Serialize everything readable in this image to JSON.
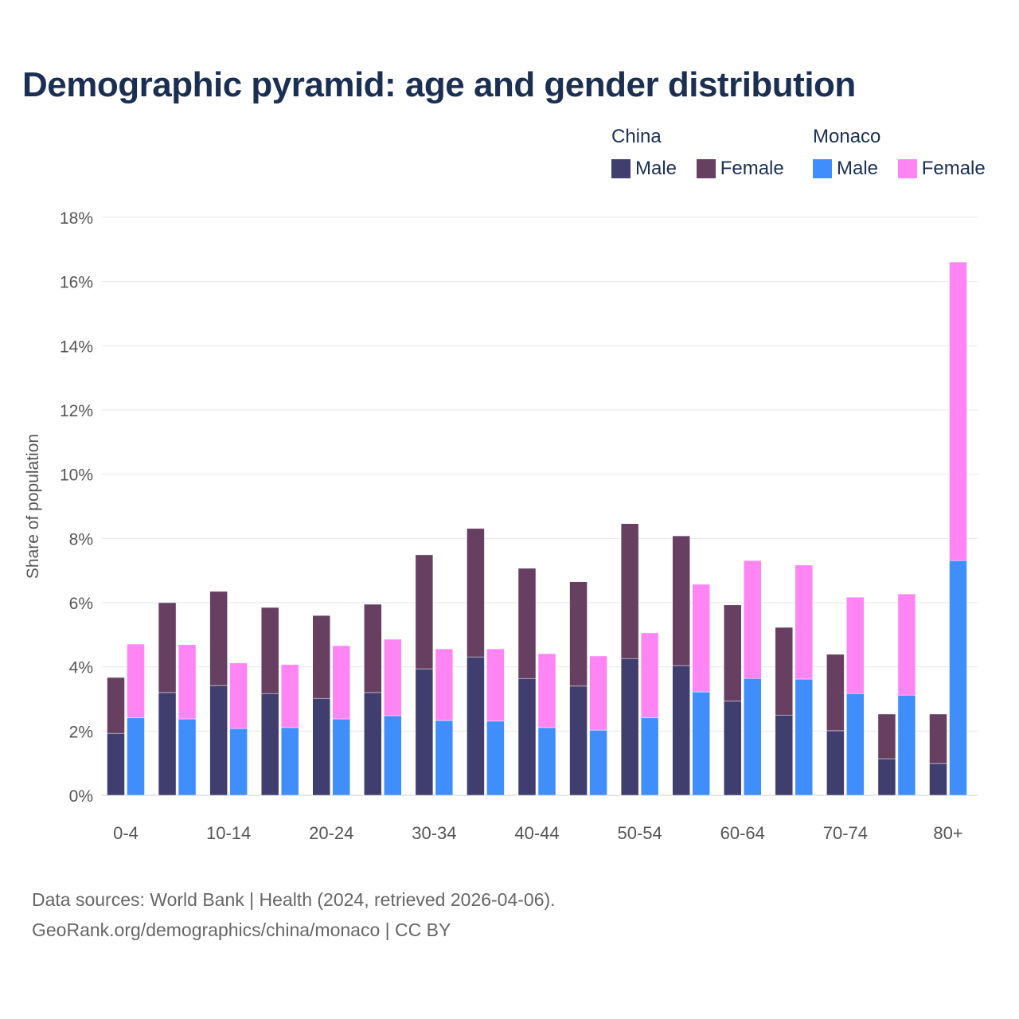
{
  "chart_data": {
    "type": "bar",
    "title": "Demographic pyramid: age and gender distribution",
    "xlabel": "",
    "ylabel": "Share of population",
    "ylim": [
      0,
      18
    ],
    "yticks": [
      "0%",
      "2%",
      "4%",
      "6%",
      "8%",
      "10%",
      "12%",
      "14%",
      "16%",
      "18%"
    ],
    "grid": true,
    "stacked": true,
    "legend_position": "top-right",
    "categories": [
      "0-4",
      "5-9",
      "10-14",
      "15-19",
      "20-24",
      "25-29",
      "30-34",
      "35-39",
      "40-44",
      "45-49",
      "50-54",
      "55-59",
      "60-64",
      "65-69",
      "70-74",
      "75-79",
      "80+"
    ],
    "xtick_labels": [
      "0-4",
      "10-14",
      "20-24",
      "30-34",
      "40-44",
      "50-54",
      "60-64",
      "70-74",
      "80+"
    ],
    "groups": [
      {
        "name": "China",
        "series": [
          {
            "name": "Male",
            "color": "#403d6f",
            "values": [
              1.93,
              3.2,
              3.42,
              3.17,
              3.02,
              3.2,
              3.94,
              4.31,
              3.64,
              3.4,
              4.26,
              4.04,
              2.93,
              2.5,
              2.01,
              1.14,
              0.99
            ]
          },
          {
            "name": "Female",
            "color": "#663f61",
            "values": [
              1.74,
              2.8,
              2.93,
              2.68,
              2.58,
              2.75,
              3.55,
              4.0,
              3.43,
              3.25,
              4.2,
              4.04,
              3.0,
              2.73,
              2.38,
              1.39,
              1.54
            ]
          }
        ]
      },
      {
        "name": "Monaco",
        "series": [
          {
            "name": "Male",
            "color": "#3f8efc",
            "values": [
              2.41,
              2.38,
              2.08,
              2.11,
              2.38,
              2.48,
              2.33,
              2.31,
              2.11,
              2.03,
              2.41,
              3.22,
              3.64,
              3.62,
              3.17,
              3.12,
              7.31
            ]
          },
          {
            "name": "Female",
            "color": "#ff85f5",
            "values": [
              2.3,
              2.31,
              2.04,
              1.96,
              2.28,
              2.38,
              2.23,
              2.25,
              2.3,
              2.31,
              2.65,
              3.35,
              3.67,
              3.55,
              3.0,
              3.15,
              9.3
            ]
          }
        ]
      }
    ]
  },
  "source_line1": "Data sources: World Bank | Health (2024, retrieved 2026-04-06).",
  "source_line2": "GeoRank.org/demographics/china/monaco | CC BY"
}
